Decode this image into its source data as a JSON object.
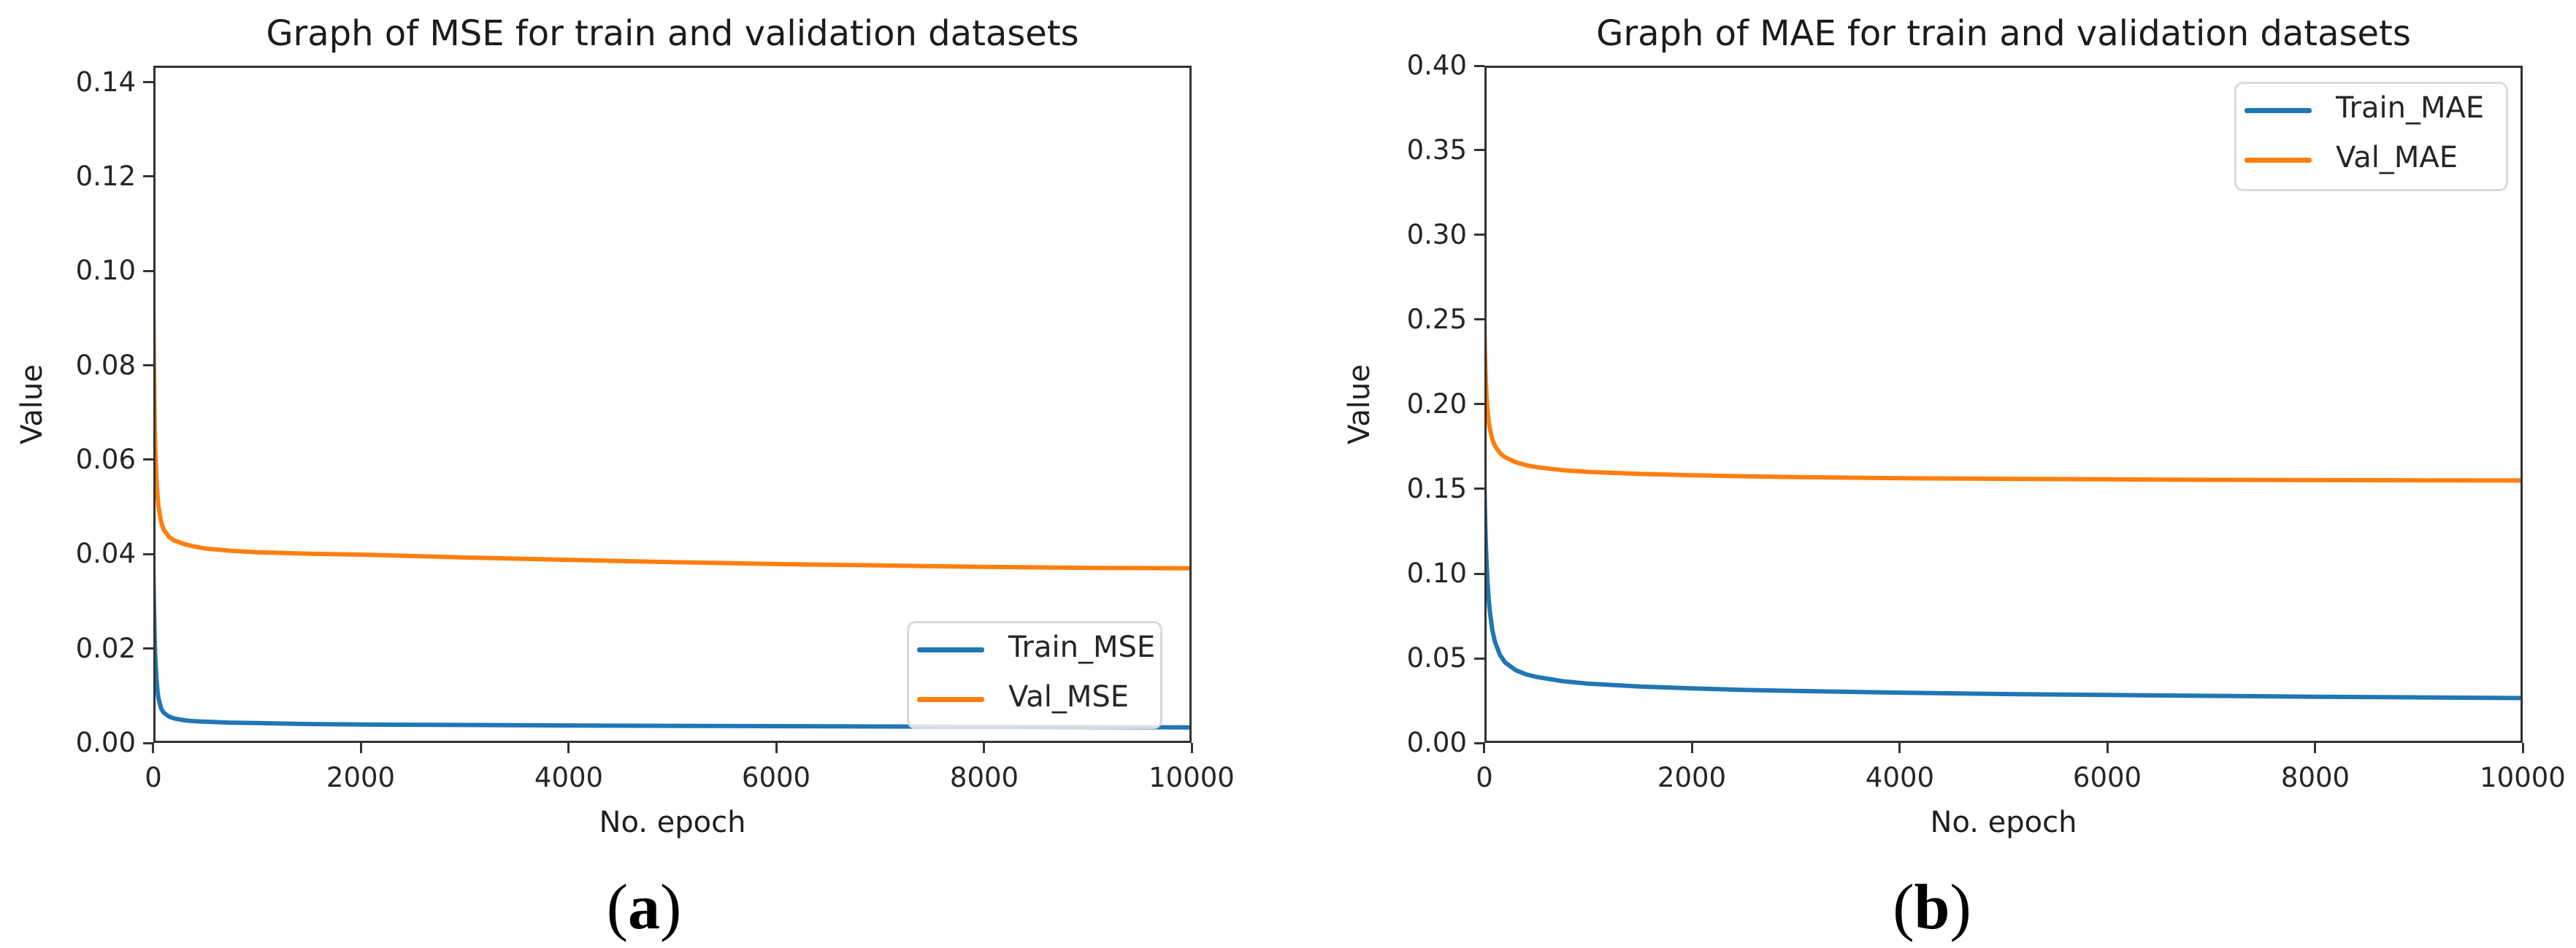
{
  "figure": {
    "captions": [
      {
        "open": "(",
        "letter": "a",
        "close": ")"
      },
      {
        "open": "(",
        "letter": "b",
        "close": ")"
      }
    ]
  },
  "colors": {
    "train_line": "#1f77b4",
    "val_line": "#ff7f0e",
    "spine": "#333333",
    "legend_border": "#d9d9d9"
  },
  "chart_data": [
    {
      "type": "line",
      "title": "Graph of MSE for train and validation datasets",
      "xlabel": "No. epoch",
      "ylabel": "Value",
      "xlim": [
        0,
        10000
      ],
      "ylim": [
        0,
        0.1435
      ],
      "grid": false,
      "legend_position": "lower right",
      "xticks": [
        0,
        2000,
        4000,
        6000,
        8000,
        10000
      ],
      "ytick_labels": [
        "0.00",
        "0.02",
        "0.04",
        "0.06",
        "0.08",
        "0.10",
        "0.12",
        "0.14"
      ],
      "x": [
        0,
        5,
        10,
        15,
        20,
        30,
        40,
        50,
        75,
        100,
        150,
        200,
        300,
        400,
        500,
        750,
        1000,
        1500,
        2000,
        2500,
        3000,
        4000,
        5000,
        6000,
        7000,
        8000,
        9000,
        10000
      ],
      "series": [
        {
          "name": "Train_MSE",
          "color": "#1f77b4",
          "values": [
            0.037,
            0.0305,
            0.025,
            0.0208,
            0.0178,
            0.0136,
            0.011,
            0.0094,
            0.0073,
            0.0064,
            0.0056,
            0.0052,
            0.0048,
            0.0046,
            0.0045,
            0.0043,
            0.0042,
            0.004,
            0.0039,
            0.00385,
            0.0038,
            0.0037,
            0.00362,
            0.00355,
            0.00348,
            0.00342,
            0.00336,
            0.0033
          ]
        },
        {
          "name": "Val_MSE",
          "color": "#ff7f0e",
          "values": [
            0.093,
            0.082,
            0.073,
            0.066,
            0.0615,
            0.056,
            0.0525,
            0.05,
            0.0468,
            0.0452,
            0.0437,
            0.0429,
            0.0421,
            0.0416,
            0.0412,
            0.0407,
            0.0404,
            0.0401,
            0.0399,
            0.0396,
            0.0393,
            0.0388,
            0.0383,
            0.0379,
            0.0376,
            0.0373,
            0.0371,
            0.037
          ]
        }
      ]
    },
    {
      "type": "line",
      "title": "Graph of MAE for train and validation datasets",
      "xlabel": "No. epoch",
      "ylabel": "Value",
      "xlim": [
        0,
        10000
      ],
      "ylim": [
        0,
        0.4
      ],
      "grid": false,
      "legend_position": "upper right",
      "xticks": [
        0,
        2000,
        4000,
        6000,
        8000,
        10000
      ],
      "ytick_labels": [
        "0.00",
        "0.05",
        "0.10",
        "0.15",
        "0.20",
        "0.25",
        "0.30",
        "0.35",
        "0.40"
      ],
      "x": [
        0,
        5,
        10,
        15,
        20,
        30,
        40,
        50,
        75,
        100,
        150,
        200,
        300,
        400,
        500,
        750,
        1000,
        1500,
        2000,
        2500,
        3000,
        4000,
        5000,
        6000,
        7000,
        8000,
        9000,
        10000
      ],
      "series": [
        {
          "name": "Train_MAE",
          "color": "#1f77b4",
          "values": [
            0.155,
            0.139,
            0.126,
            0.116,
            0.108,
            0.095,
            0.086,
            0.079,
            0.067,
            0.06,
            0.052,
            0.0475,
            0.043,
            0.0405,
            0.039,
            0.0365,
            0.035,
            0.0333,
            0.0322,
            0.0313,
            0.0307,
            0.0297,
            0.0289,
            0.0283,
            0.0278,
            0.0273,
            0.0269,
            0.0265
          ]
        },
        {
          "name": "Val_MAE",
          "color": "#ff7f0e",
          "values": [
            0.247,
            0.232,
            0.221,
            0.2125,
            0.206,
            0.1965,
            0.1905,
            0.1865,
            0.1795,
            0.1755,
            0.1712,
            0.1687,
            0.1658,
            0.1641,
            0.1629,
            0.1611,
            0.1601,
            0.1589,
            0.1581,
            0.1575,
            0.157,
            0.1564,
            0.156,
            0.1557,
            0.1554,
            0.1552,
            0.1551,
            0.155
          ]
        }
      ]
    }
  ]
}
